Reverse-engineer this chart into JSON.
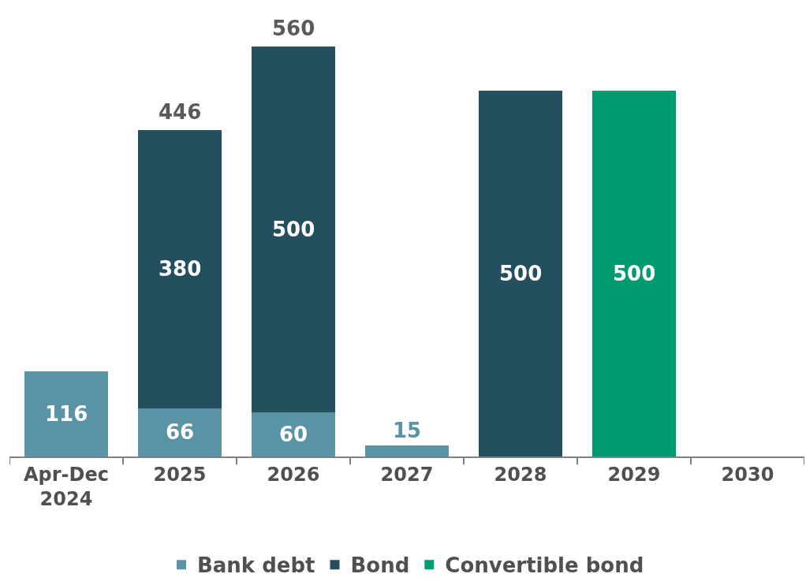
{
  "chart_data": {
    "type": "bar",
    "stacked": true,
    "categories": [
      "Apr-Dec\n2024",
      "2025",
      "2026",
      "2027",
      "2028",
      "2029",
      "2030"
    ],
    "series": [
      {
        "name": "Bank debt",
        "color": "#5b93a6",
        "values": [
          116,
          66,
          60,
          15,
          null,
          null,
          null
        ]
      },
      {
        "name": "Bond",
        "color": "#234f5e",
        "values": [
          null,
          380,
          500,
          null,
          500,
          null,
          null
        ]
      },
      {
        "name": "Convertible bond",
        "color": "#009b6e",
        "values": [
          null,
          null,
          null,
          null,
          null,
          500,
          null
        ]
      }
    ],
    "data_labels": true,
    "totals": [
      null,
      "446",
      "560",
      null,
      null,
      null,
      null
    ],
    "legend": "bottom"
  }
}
